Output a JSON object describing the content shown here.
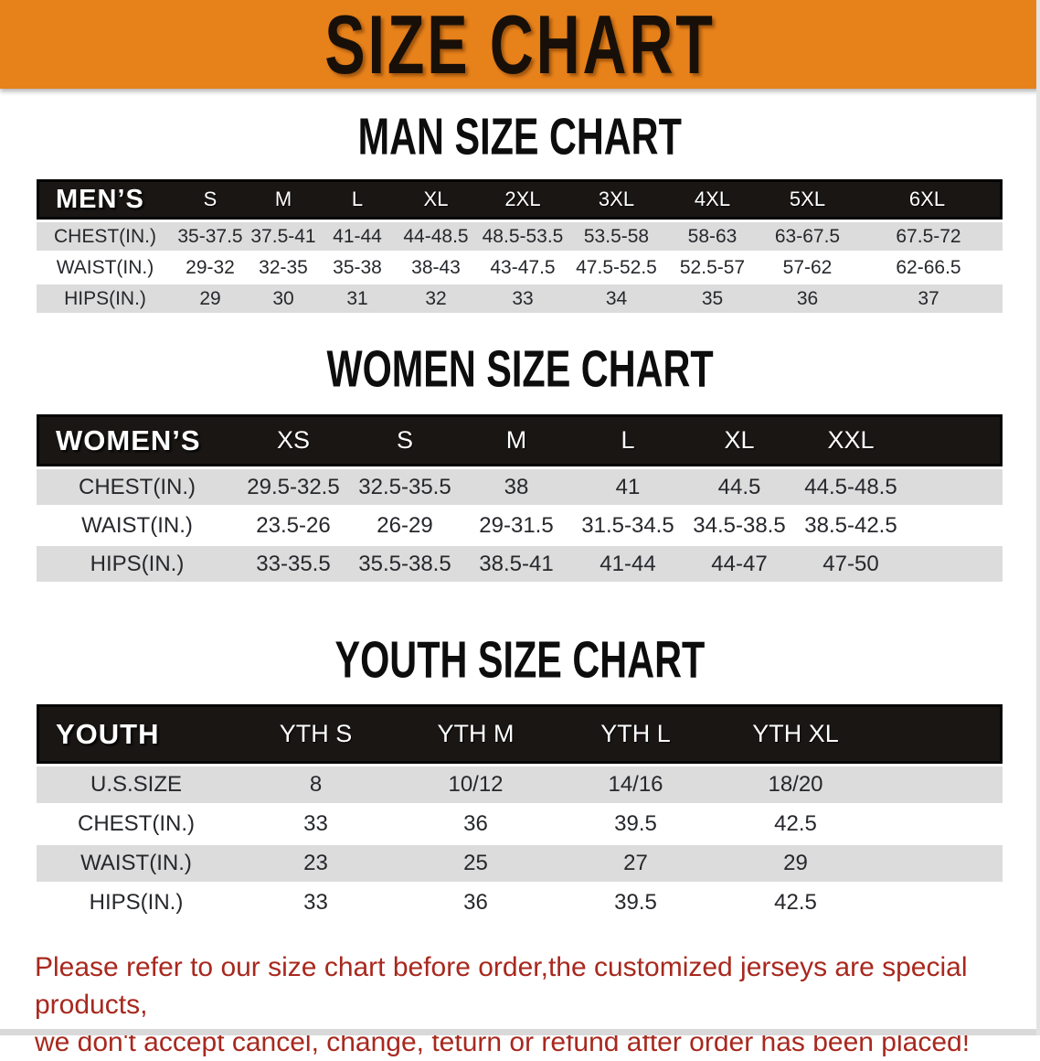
{
  "banner": {
    "title": "SIZE CHART"
  },
  "colors": {
    "banner-bg": "#e7811a",
    "table-header-bg": "#1a1614",
    "stripe-gray": "#dcdcdc",
    "disclaimer-red": "#a8281e"
  },
  "tables": {
    "men": {
      "heading": "MAN SIZE CHART",
      "label": "MEN’S",
      "sizes": [
        "S",
        "M",
        "L",
        "XL",
        "2XL",
        "3XL",
        "4XL",
        "5XL",
        "6XL"
      ],
      "rows": [
        {
          "label": "CHEST(IN.)",
          "values": [
            "35-37.5",
            "37.5-41",
            "41-44",
            "44-48.5",
            "48.5-53.5",
            "53.5-58",
            "58-63",
            "63-67.5",
            "67.5-72"
          ]
        },
        {
          "label": "WAIST(IN.)",
          "values": [
            "29-32",
            "32-35",
            "35-38",
            "38-43",
            "43-47.5",
            "47.5-52.5",
            "52.5-57",
            "57-62",
            "62-66.5"
          ]
        },
        {
          "label": "HIPS(IN.)",
          "values": [
            "29",
            "30",
            "31",
            "32",
            "33",
            "34",
            "35",
            "36",
            "37"
          ]
        }
      ]
    },
    "women": {
      "heading": "WOMEN SIZE CHART",
      "label": "WOMEN’S",
      "sizes": [
        "XS",
        "S",
        "M",
        "L",
        "XL",
        "XXL"
      ],
      "rows": [
        {
          "label": "CHEST(IN.)",
          "values": [
            "29.5-32.5",
            "32.5-35.5",
            "38",
            "41",
            "44.5",
            "44.5-48.5"
          ]
        },
        {
          "label": "WAIST(IN.)",
          "values": [
            "23.5-26",
            "26-29",
            "29-31.5",
            "31.5-34.5",
            "34.5-38.5",
            "38.5-42.5"
          ]
        },
        {
          "label": "HIPS(IN.)",
          "values": [
            "33-35.5",
            "35.5-38.5",
            "38.5-41",
            "41-44",
            "44-47",
            "47-50"
          ]
        }
      ]
    },
    "youth": {
      "heading": "YOUTH SIZE CHART",
      "label": "YOUTH",
      "sizes": [
        "YTH S",
        "YTH M",
        "YTH L",
        "YTH XL"
      ],
      "rows": [
        {
          "label": "U.S.SIZE",
          "values": [
            "8",
            "10/12",
            "14/16",
            "18/20"
          ]
        },
        {
          "label": "CHEST(IN.)",
          "values": [
            "33",
            "36",
            "39.5",
            "42.5"
          ]
        },
        {
          "label": "WAIST(IN.)",
          "values": [
            "23",
            "25",
            "27",
            "29"
          ]
        },
        {
          "label": "HIPS(IN.)",
          "values": [
            "33",
            "36",
            "39.5",
            "42.5"
          ]
        }
      ]
    }
  },
  "disclaimer": {
    "line1": "Please refer to our size chart before order,the customized jerseys are special products,",
    "line2": "we don't accept cancel, change, teturn or refund after order has been placed!"
  }
}
